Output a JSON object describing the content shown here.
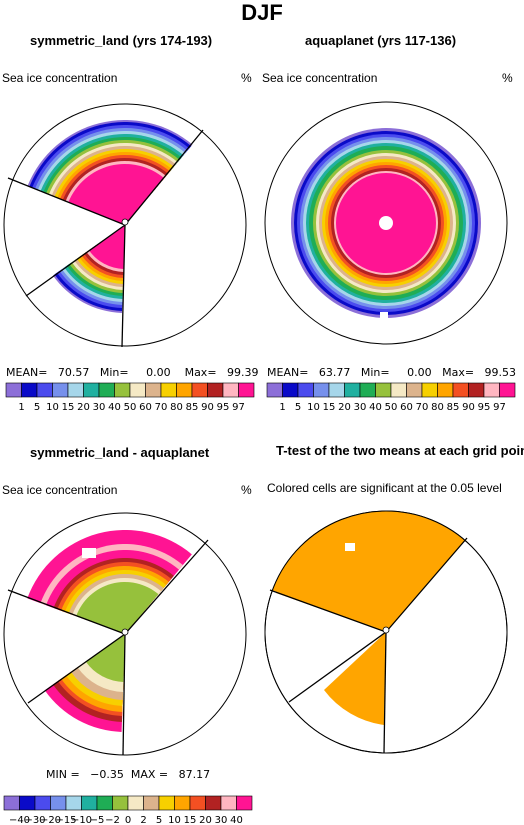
{
  "header": {
    "season": "DJF"
  },
  "panels": {
    "p1": {
      "title": "symmetric_land (yrs 174-193)",
      "variable": "Sea ice concentration",
      "units": "%",
      "stats": "MEAN=   70.57   Min=     0.00    Max=   99.39"
    },
    "p2": {
      "title": "aquaplanet (yrs 117-136)",
      "variable": "Sea ice concentration",
      "units": "%",
      "stats": "MEAN=   63.77   Min=     0.00   Max=   99.53"
    },
    "p3": {
      "title": "symmetric_land - aquaplanet",
      "variable": "Sea ice concentration",
      "units": "%",
      "stats": "MIN =   −0.35  MAX =   87.17"
    },
    "p4": {
      "title": "T-test of the two means at each grid point",
      "variable": "Colored cells are significant at the 0.05 level"
    }
  },
  "chart_data": [
    {
      "type": "heatmap",
      "projection": "polar",
      "name": "symmetric_land",
      "mean": 70.57,
      "min": 0.0,
      "max": 99.39,
      "legend_levels": [
        "1",
        "5",
        "10",
        "15",
        "20",
        "30",
        "40",
        "50",
        "60",
        "70",
        "80",
        "85",
        "90",
        "95",
        "97"
      ],
      "colors": [
        "#8c6fd8",
        "#0a0ac8",
        "#4b4bee",
        "#7690ec",
        "#a6d6ea",
        "#20b0a0",
        "#1fad55",
        "#96c13c",
        "#f5e9c5",
        "#dcb38c",
        "#f7d000",
        "#ffa500",
        "#f35022",
        "#b22222",
        "#ffb6c1",
        "#ff1493"
      ]
    },
    {
      "type": "heatmap",
      "projection": "polar",
      "name": "aquaplanet",
      "mean": 63.77,
      "min": 0.0,
      "max": 99.53,
      "legend_levels": [
        "1",
        "5",
        "10",
        "15",
        "20",
        "30",
        "40",
        "50",
        "60",
        "70",
        "80",
        "85",
        "90",
        "95",
        "97"
      ],
      "colors": [
        "#8c6fd8",
        "#0a0ac8",
        "#4b4bee",
        "#7690ec",
        "#a6d6ea",
        "#20b0a0",
        "#1fad55",
        "#96c13c",
        "#f5e9c5",
        "#dcb38c",
        "#f7d000",
        "#ffa500",
        "#f35022",
        "#b22222",
        "#ffb6c1",
        "#ff1493"
      ]
    },
    {
      "type": "heatmap",
      "projection": "polar",
      "name": "difference",
      "min": -0.35,
      "max": 87.17,
      "legend_levels": [
        "−40",
        "−30",
        "−20",
        "−15",
        "−10",
        "−5",
        "−2",
        "0",
        "2",
        "5",
        "10",
        "15",
        "20",
        "30",
        "40"
      ],
      "colors": [
        "#8c6fd8",
        "#0a0ac8",
        "#4b4bee",
        "#7690ec",
        "#a6d6ea",
        "#20b0a0",
        "#1fad55",
        "#96c13c",
        "#f5e9c5",
        "#dcb38c",
        "#f7d000",
        "#ffa500",
        "#f35022",
        "#b22222",
        "#ffb6c1",
        "#ff1493"
      ]
    },
    {
      "type": "heatmap",
      "projection": "polar",
      "name": "t-test significance",
      "color": "#ffa500"
    }
  ]
}
